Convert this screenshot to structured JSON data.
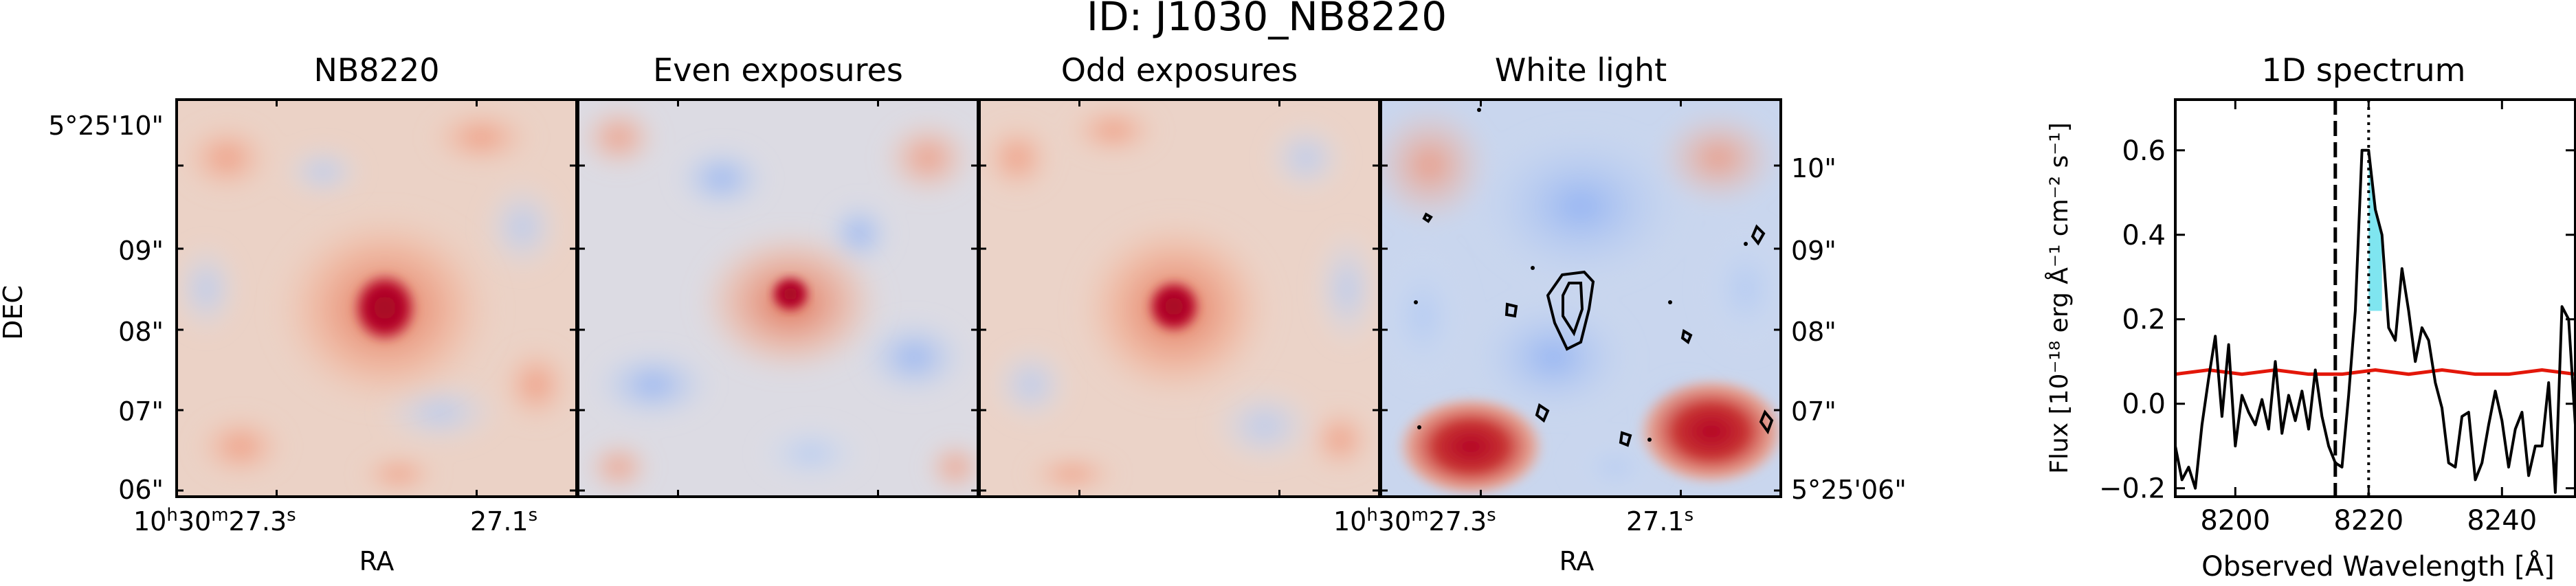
{
  "title": "ID: J1030_NB8220",
  "panels": [
    {
      "id": "nb",
      "title": "NB8220"
    },
    {
      "id": "even",
      "title": "Even exposures"
    },
    {
      "id": "odd",
      "title": "Odd exposures"
    },
    {
      "id": "white",
      "title": "White light"
    }
  ],
  "axes": {
    "dec_label": "DEC",
    "ra_label": "RA",
    "dec_ticks": [
      "5°25'10\"",
      "09\"",
      "08\"",
      "07\"",
      "06\""
    ],
    "dec_ticks_right": [
      "10\"",
      "09\"",
      "08\"",
      "07\"",
      "5°25'06\""
    ],
    "ra_tick_left": {
      "base": "10",
      "h": "h",
      "m_val": "30",
      "m": "m",
      "s_val": "27.3",
      "s": "s"
    },
    "ra_tick_right": {
      "val": "27.1",
      "s": "s"
    }
  },
  "colors": {
    "cmap_low": "#3b4cc0",
    "cmap_mid": "#f2f0ee",
    "cmap_high": "#b40426",
    "spectrum_line": "#000000",
    "noise_line": "#e3170a",
    "emission_fill": "#7fe5f0"
  },
  "chart_data": {
    "type": "line",
    "title": "1D spectrum",
    "xlabel": "Observed Wavelength [Å]",
    "ylabel": "Flux [10⁻¹⁸ erg Å⁻¹ cm⁻² s⁻¹]",
    "xlim": [
      8191,
      8251
    ],
    "ylim": [
      -0.22,
      0.72
    ],
    "xticks": [
      8200,
      8220,
      8240
    ],
    "yticks": [
      -0.2,
      0.0,
      0.2,
      0.4,
      0.6
    ],
    "ytick_labels": [
      "−0.2",
      "0.0",
      "0.2",
      "0.4",
      "0.6"
    ],
    "vline_dashed": 8215,
    "vline_dotted": 8220,
    "grid": false,
    "series": [
      {
        "x": [
          8191,
          8192,
          8193,
          8194,
          8195,
          8196,
          8197,
          8198,
          8199,
          8200,
          8201,
          8202,
          8203,
          8204,
          8205,
          8206,
          8207,
          8208,
          8209,
          8210,
          8211,
          8212,
          8213,
          8214,
          8215,
          8216,
          8217,
          8218,
          8219,
          8220,
          8221,
          8222,
          8223,
          8224,
          8225,
          8226,
          8227,
          8228,
          8229,
          8230,
          8231,
          8232,
          8233,
          8234,
          8235,
          8236,
          8237,
          8238,
          8239,
          8240,
          8241,
          8242,
          8243,
          8244,
          8245,
          8246,
          8247,
          8248,
          8249,
          8250,
          8251
        ],
        "y": [
          -0.1,
          -0.18,
          -0.15,
          -0.2,
          -0.05,
          0.06,
          0.16,
          -0.03,
          0.14,
          -0.1,
          0.02,
          -0.02,
          -0.05,
          0.01,
          -0.06,
          0.1,
          -0.07,
          0.02,
          -0.04,
          0.03,
          -0.06,
          0.08,
          -0.03,
          -0.1,
          -0.14,
          -0.15,
          0.02,
          0.22,
          0.6,
          0.6,
          0.46,
          0.4,
          0.18,
          0.15,
          0.32,
          0.22,
          0.1,
          0.18,
          0.15,
          0.05,
          -0.01,
          -0.14,
          -0.15,
          -0.03,
          -0.02,
          -0.18,
          -0.14,
          -0.05,
          0.03,
          -0.04,
          -0.15,
          -0.06,
          -0.02,
          -0.17,
          -0.1,
          -0.1,
          0.05,
          -0.21,
          0.23,
          0.2,
          -0.05
        ]
      },
      {
        "x": [
          8191,
          8196,
          8201,
          8206,
          8211,
          8216,
          8221,
          8226,
          8231,
          8236,
          8241,
          8246,
          8251
        ],
        "y": [
          0.07,
          0.08,
          0.07,
          0.08,
          0.07,
          0.07,
          0.08,
          0.07,
          0.08,
          0.07,
          0.07,
          0.08,
          0.07
        ]
      }
    ]
  }
}
